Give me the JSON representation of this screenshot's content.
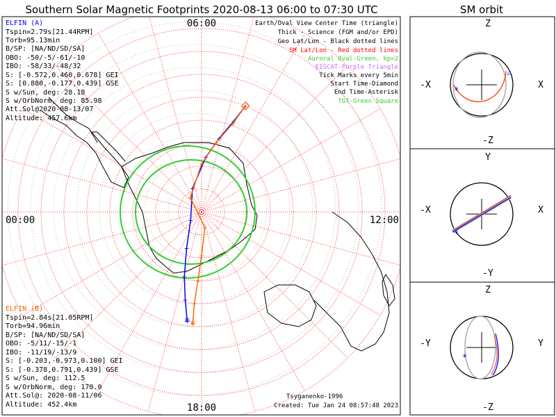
{
  "title": "Southern Solar Magnetic Footprints 2020-08-13 06:00 to 07:30 UTC",
  "orbit_title": "SM orbit",
  "mlt_labels": {
    "top": "06:00",
    "left": "00:00",
    "right": "12:00",
    "bottom": "18:00"
  },
  "elfin_a": {
    "header": "ELFIN (A)",
    "lines": [
      "Tspin=2.79s[21.44RPM]",
      "Torb=95.13min",
      "B/SP: [NA/ND/SD/SA]",
      "OBO: -50/-5/-61/-10",
      "IBO: -58/33/-48/32",
      "S: [-0.572,0.460,0.678] GEI",
      "S: [0.880,-0.177,0.439] GSE",
      "S w/Sun, deg: 28.18",
      "S w/OrbNorm, deg: 85.98",
      "Att.Sol@2020-08-13/07",
      "Altitude: 457.6km"
    ],
    "color": "#0000ff"
  },
  "elfin_b": {
    "header": "ELFIN (B)",
    "lines": [
      "Tspin=2.84s[21.05RPM]",
      "Torb=94.96min",
      "B/SP: [NA/ND/SD/SA]",
      "OBO: -5/11/-15/-1",
      "IBO: -11/19/-13/9",
      "S: [-0.203,-0.973,0.100] GEI",
      "S: [-0.378,0.791,0.439] GSE",
      "S w/Sun, deg: 112.5",
      "S w/OrbNorm, deg: 170.0",
      "Att.Sol@: 2020-08-11/06",
      "Altitude: 452.4km"
    ],
    "color": "#ff6600"
  },
  "legend": [
    {
      "text": "Earth/Oval View Center Time (triangle)",
      "color": "#000000"
    },
    {
      "text": "Thick - Science (FGM and/or EPD)",
      "color": "#000000"
    },
    {
      "text": "Geo Lat/Lon - Black dotted lines",
      "color": "#000000"
    },
    {
      "text": "SM Lat/Lon - Red dotted lines",
      "color": "#ff0000"
    },
    {
      "text": "Auroral Oval-Green, kp=2",
      "color": "#33cc33"
    },
    {
      "text": "EISCAT-Purple Triangle",
      "color": "#cc66ff"
    },
    {
      "text": "Tick Marks every 5min",
      "color": "#000000"
    },
    {
      "text": "Start Time-Diamond",
      "color": "#000000"
    },
    {
      "text": "End Time-Asterisk",
      "color": "#000000"
    },
    {
      "text": "TGT-Green Square",
      "color": "#33cc33"
    }
  ],
  "credits": {
    "author": "Tsyganenko-1996",
    "created": "Created: Tue Jan 24 08:57:48 2023"
  },
  "orbit_panels": [
    {
      "top": "Z",
      "left": "-X",
      "right": "X",
      "bottom": "-Z"
    },
    {
      "top": "Y",
      "left": "-X",
      "right": "X",
      "bottom": "-Y"
    },
    {
      "top": "Z",
      "left": "-Y",
      "right": "Y",
      "bottom": "-Z"
    }
  ],
  "colors": {
    "elfin_a": "#0000ff",
    "elfin_b": "#ff6600",
    "sm_grid": "#ff0000",
    "auroral_oval": "#33cc33",
    "orbit_gray": "#aaaaaa"
  },
  "chart_data": {
    "type": "scatter",
    "projection": "southern-hemisphere polar, SM coordinates, MLT on azimuth",
    "mlt_axis_ticks": [
      "00:00",
      "06:00",
      "12:00",
      "18:00"
    ],
    "series": [
      {
        "name": "ELFIN (A)",
        "color": "#0000ff",
        "points": [
          {
            "mlt": 7.5,
            "lat": -40
          },
          {
            "mlt": 7.3,
            "lat": -48
          },
          {
            "mlt": 6.9,
            "lat": -57
          },
          {
            "mlt": 6.3,
            "lat": -66
          },
          {
            "mlt": 4.6,
            "lat": -79
          },
          {
            "mlt": 21.5,
            "lat": -84
          },
          {
            "mlt": 19.5,
            "lat": -73
          },
          {
            "mlt": 19.0,
            "lat": -61
          },
          {
            "mlt": 18.7,
            "lat": -51
          },
          {
            "mlt": 18.5,
            "lat": -42
          }
        ]
      },
      {
        "name": "ELFIN (B)",
        "color": "#ff6600",
        "points": [
          {
            "mlt": 7.5,
            "lat": -40
          },
          {
            "mlt": 7.3,
            "lat": -49
          },
          {
            "mlt": 6.8,
            "lat": -59
          },
          {
            "mlt": 6.0,
            "lat": -69
          },
          {
            "mlt": 3.5,
            "lat": -82
          },
          {
            "mlt": 17.2,
            "lat": -83
          },
          {
            "mlt": 18.0,
            "lat": -71
          },
          {
            "mlt": 18.2,
            "lat": -60
          },
          {
            "mlt": 18.3,
            "lat": -50
          },
          {
            "mlt": 18.3,
            "lat": -41
          }
        ]
      }
    ]
  }
}
